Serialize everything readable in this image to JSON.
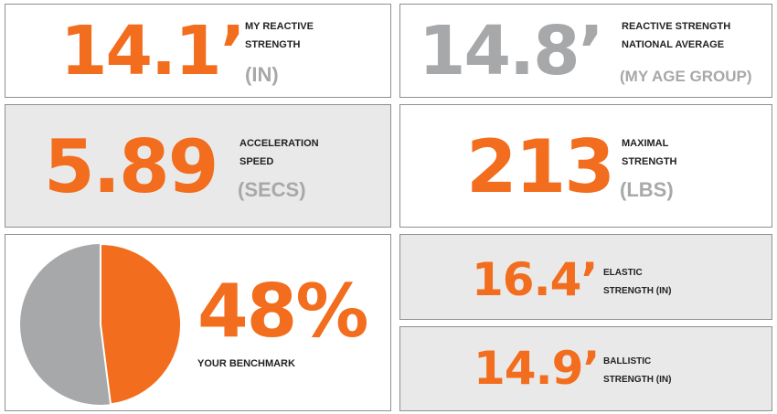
{
  "cards": {
    "reactive": {
      "value": "14.1’",
      "label_line1": "MY REACTIVE",
      "label_line2": "STRENGTH",
      "unit": "(IN)"
    },
    "national": {
      "value": "14.8’",
      "label_line1": "REACTIVE STRENGTH",
      "label_line2": "NATIONAL AVERAGE",
      "unit": "(MY AGE GROUP)"
    },
    "acceleration": {
      "value": "5.89",
      "label_line1": "ACCELERATION",
      "label_line2": "SPEED",
      "unit": "(SECS)"
    },
    "maximal": {
      "value": "213",
      "label_line1": "MAXIMAL",
      "label_line2": "STRENGTH",
      "unit": "(LBS)"
    },
    "benchmark": {
      "value": "48%",
      "label": "YOUR BENCHMARK",
      "fraction": 0.48
    },
    "elastic": {
      "value": "16.4’",
      "label_line1": "ELASTIC",
      "label_line2": "STRENGTH (IN)"
    },
    "ballistic": {
      "value": "14.9’",
      "label_line1": "BALLISTIC",
      "label_line2": "STRENGTH (IN)"
    }
  },
  "colors": {
    "accent": "#f26d1d",
    "muted": "#a7a8aa",
    "panel_gray": "#e9e9e9"
  }
}
